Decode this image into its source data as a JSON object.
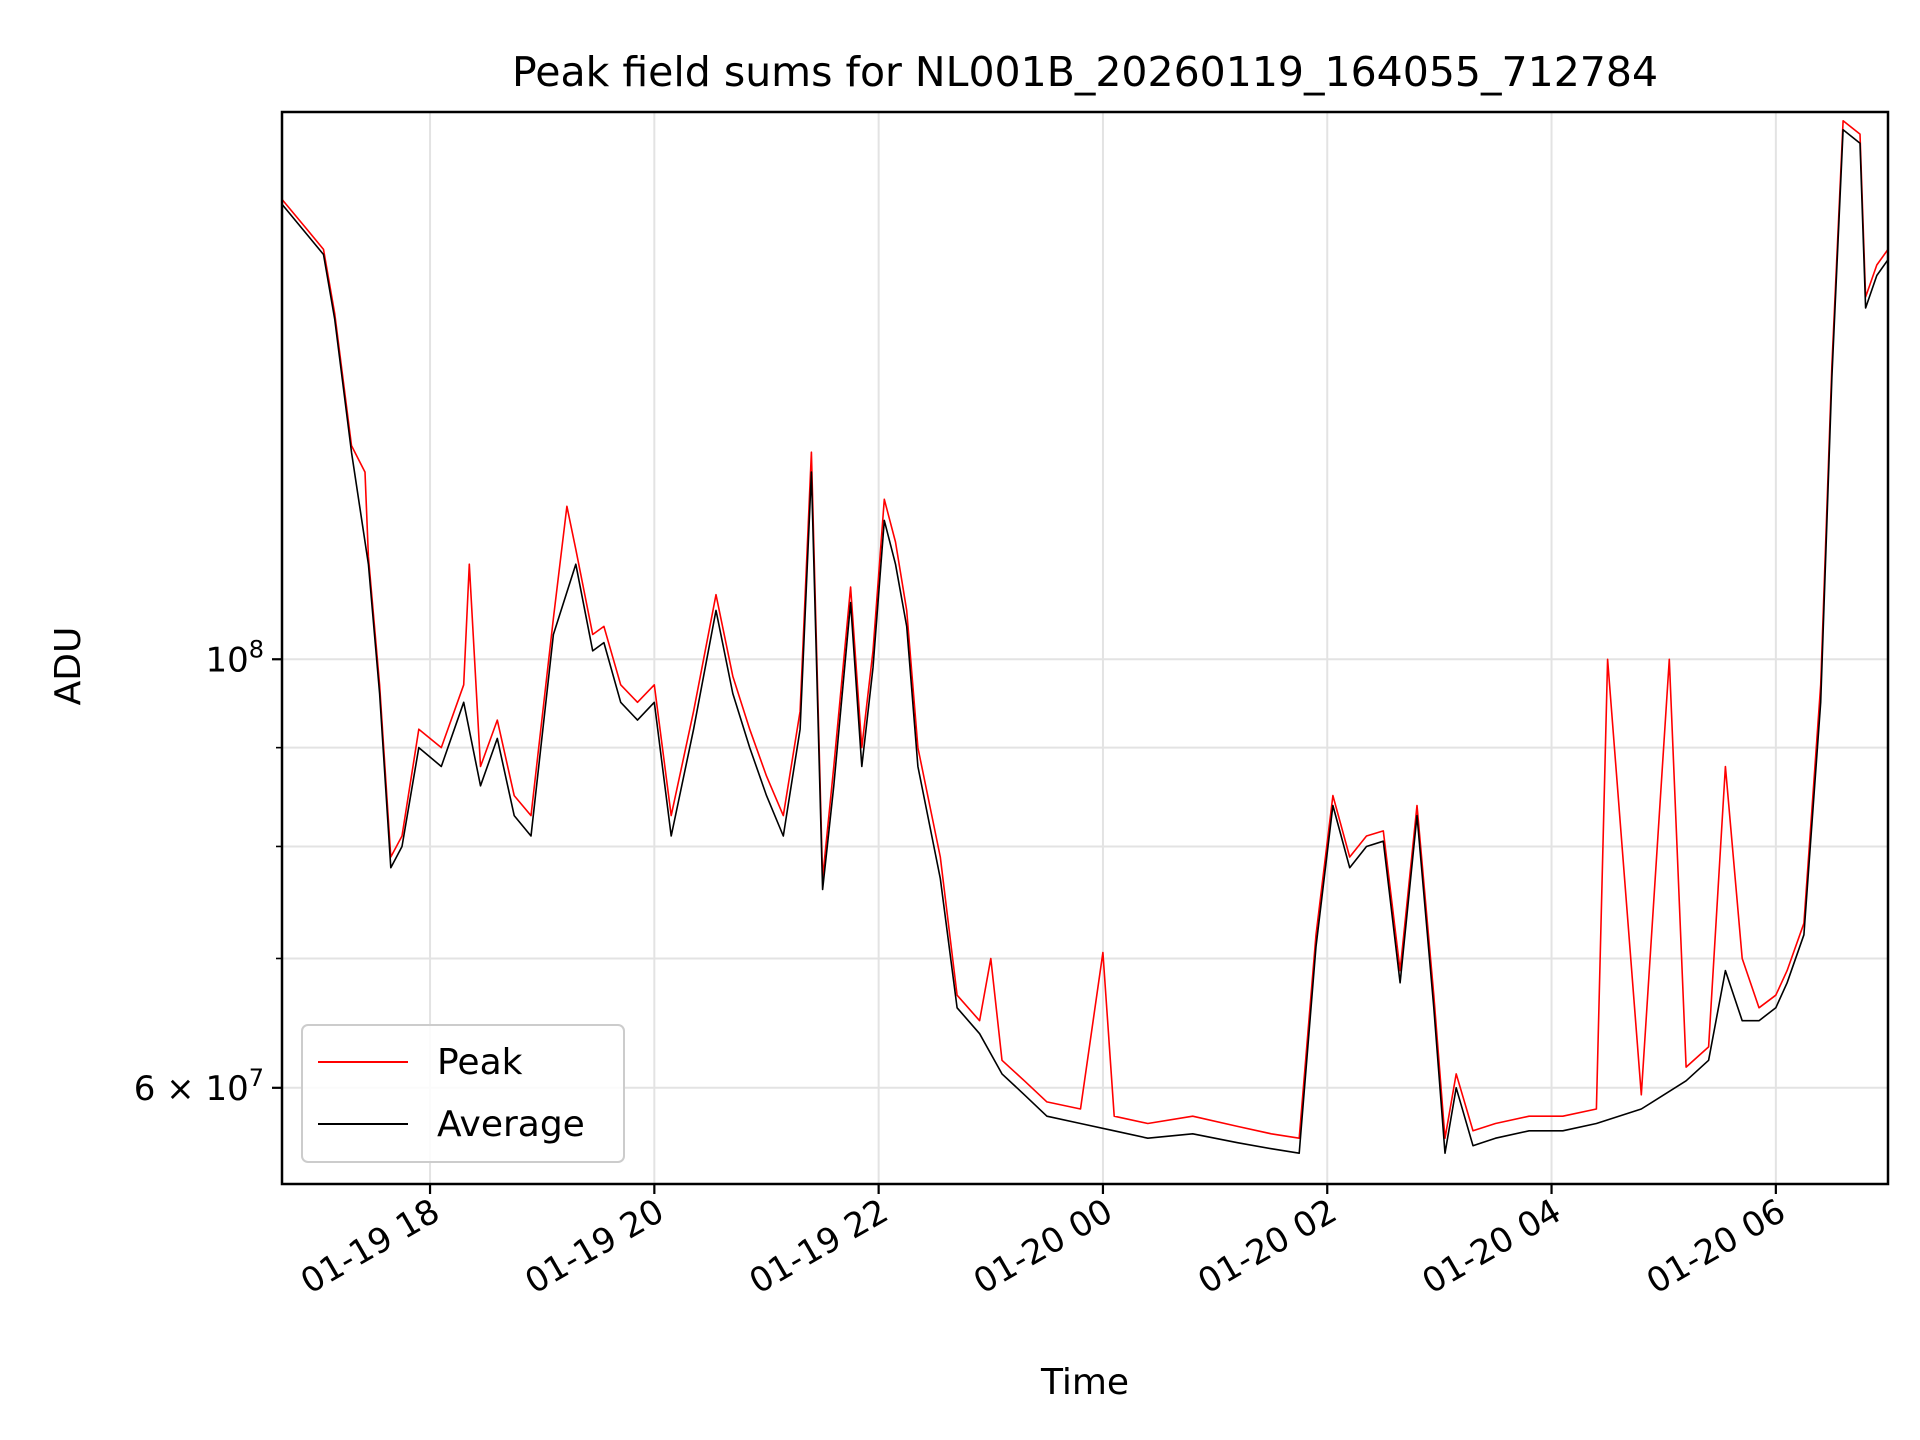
{
  "chart_data": {
    "type": "line",
    "title": "Peak field sums for NL001B_20260119_164055_712784",
    "xlabel": "Time",
    "ylabel": "ADU",
    "yscale": "log",
    "xlim_hours": [
      16.68,
      31.0
    ],
    "ylim": [
      53500000,
      192000000
    ],
    "grid": true,
    "legend_position": "lower left",
    "x_ticks": [
      {
        "hour": 18,
        "label": "01-19 18"
      },
      {
        "hour": 20,
        "label": "01-19 20"
      },
      {
        "hour": 22,
        "label": "01-19 22"
      },
      {
        "hour": 24,
        "label": "01-20 00"
      },
      {
        "hour": 26,
        "label": "01-20 02"
      },
      {
        "hour": 28,
        "label": "01-20 04"
      },
      {
        "hour": 30,
        "label": "01-20 06"
      }
    ],
    "y_ticks_major": [
      {
        "value": 100000000,
        "base": "10",
        "exp": "8",
        "coef": ""
      },
      {
        "value": 60000000,
        "base": "10",
        "exp": "7",
        "coef": "6 × "
      }
    ],
    "y_ticks_minor": [
      70000000,
      80000000,
      90000000
    ],
    "series": [
      {
        "name": "Average",
        "color": "#000000",
        "hours": [
          16.68,
          16.9,
          17.05,
          17.15,
          17.3,
          17.45,
          17.55,
          17.65,
          17.75,
          17.9,
          18.1,
          18.3,
          18.45,
          18.6,
          18.75,
          18.9,
          19.1,
          19.3,
          19.45,
          19.55,
          19.7,
          19.85,
          20.0,
          20.15,
          20.35,
          20.55,
          20.7,
          20.85,
          21.0,
          21.15,
          21.3,
          21.4,
          21.5,
          21.6,
          21.75,
          21.85,
          21.95,
          22.05,
          22.15,
          22.25,
          22.35,
          22.55,
          22.7,
          22.9,
          23.1,
          23.3,
          23.5,
          23.8,
          24.1,
          24.4,
          24.8,
          25.2,
          25.5,
          25.75,
          25.9,
          26.05,
          26.2,
          26.35,
          26.5,
          26.65,
          26.8,
          26.95,
          27.05,
          27.15,
          27.3,
          27.5,
          27.8,
          28.1,
          28.4,
          28.8,
          29.2,
          29.4,
          29.55,
          29.7,
          29.85,
          30.0,
          30.1,
          30.25,
          30.4,
          30.5,
          30.6,
          30.75,
          30.8,
          30.9,
          31.0
        ],
        "values": [
          172000000,
          166000000,
          162000000,
          150000000,
          128000000,
          112000000,
          96000000,
          78000000,
          80000000,
          90000000,
          88000000,
          95000000,
          86000000,
          91000000,
          83000000,
          81000000,
          103000000,
          112000000,
          101000000,
          102000000,
          95000000,
          93000000,
          95000000,
          81000000,
          92000000,
          106000000,
          96000000,
          90000000,
          85000000,
          81000000,
          92000000,
          125000000,
          76000000,
          86000000,
          107000000,
          88000000,
          99000000,
          118000000,
          112000000,
          104000000,
          88000000,
          77000000,
          66000000,
          64000000,
          61000000,
          59500000,
          58000000,
          57500000,
          57000000,
          56500000,
          56800000,
          56200000,
          55800000,
          55500000,
          71000000,
          84000000,
          78000000,
          80000000,
          80500000,
          68000000,
          83000000,
          66000000,
          55500000,
          60000000,
          56000000,
          56500000,
          57000000,
          57000000,
          57500000,
          58500000,
          60500000,
          62000000,
          69000000,
          65000000,
          65000000,
          66000000,
          68000000,
          72000000,
          95000000,
          140000000,
          188000000,
          185000000,
          152000000,
          158000000,
          161000000
        ]
      },
      {
        "name": "Peak",
        "color": "#ff0000",
        "hours": [
          16.68,
          16.9,
          17.05,
          17.15,
          17.3,
          17.42,
          17.45,
          17.55,
          17.65,
          17.75,
          17.9,
          18.1,
          18.3,
          18.35,
          18.45,
          18.6,
          18.75,
          18.9,
          19.1,
          19.22,
          19.3,
          19.45,
          19.55,
          19.7,
          19.85,
          20.0,
          20.15,
          20.35,
          20.55,
          20.7,
          20.85,
          21.0,
          21.15,
          21.3,
          21.4,
          21.5,
          21.6,
          21.75,
          21.85,
          21.95,
          22.05,
          22.15,
          22.25,
          22.35,
          22.55,
          22.7,
          22.9,
          23.0,
          23.1,
          23.3,
          23.5,
          23.8,
          24.0,
          24.1,
          24.4,
          24.8,
          25.2,
          25.5,
          25.75,
          25.9,
          26.05,
          26.2,
          26.35,
          26.5,
          26.65,
          26.8,
          26.95,
          27.05,
          27.15,
          27.3,
          27.5,
          27.8,
          28.1,
          28.4,
          28.5,
          28.8,
          29.05,
          29.2,
          29.4,
          29.55,
          29.7,
          29.85,
          30.0,
          30.1,
          30.25,
          30.4,
          30.5,
          30.6,
          30.75,
          30.8,
          30.9,
          31.0
        ],
        "values": [
          173000000,
          167000000,
          163000000,
          151000000,
          129000000,
          125000000,
          113000000,
          97000000,
          79000000,
          81000000,
          92000000,
          90000000,
          97000000,
          112000000,
          88000000,
          93000000,
          85000000,
          83000000,
          105000000,
          120000000,
          114000000,
          103000000,
          104000000,
          97000000,
          95000000,
          97000000,
          83000000,
          94000000,
          108000000,
          98000000,
          92000000,
          87000000,
          83000000,
          94000000,
          128000000,
          77000000,
          88000000,
          109000000,
          90000000,
          101000000,
          121000000,
          115000000,
          106000000,
          90000000,
          79000000,
          67000000,
          65000000,
          70000000,
          62000000,
          60500000,
          59000000,
          58500000,
          70500000,
          58000000,
          57500000,
          58000000,
          57300000,
          56800000,
          56500000,
          72000000,
          85000000,
          79000000,
          81000000,
          81500000,
          69000000,
          84000000,
          67000000,
          56500000,
          61000000,
          57000000,
          57500000,
          58000000,
          58000000,
          58500000,
          100000000,
          59500000,
          100000000,
          61500000,
          63000000,
          88000000,
          70000000,
          66000000,
          67000000,
          69000000,
          73000000,
          97000000,
          142000000,
          190000000,
          187000000,
          154000000,
          160000000,
          163000000
        ]
      }
    ]
  }
}
